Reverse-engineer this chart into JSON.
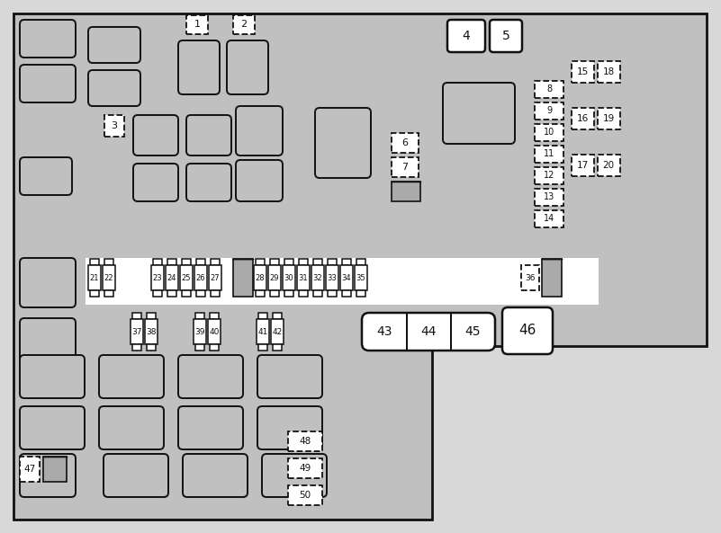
{
  "bg": "#c0c0c0",
  "white": "#ffffff",
  "dark": "#111111",
  "hatch_fill": "#aaaaaa",
  "outer_bg": "#d8d8d8",
  "fig_w": 8.01,
  "fig_h": 5.93,
  "dpi": 100
}
